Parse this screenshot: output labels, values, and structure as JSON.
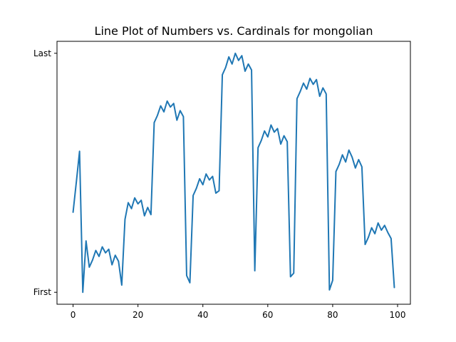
{
  "chart_data": {
    "type": "line",
    "title": "Line Plot of Numbers vs. Cardinals for mongolian",
    "xlabel": "",
    "ylabel": "",
    "xlim": [
      -4.95,
      103.95
    ],
    "ylim": [
      -0.05,
      1.05
    ],
    "xticks": [
      {
        "value": 0,
        "label": "0"
      },
      {
        "value": 20,
        "label": "20"
      },
      {
        "value": 40,
        "label": "40"
      },
      {
        "value": 60,
        "label": "60"
      },
      {
        "value": 80,
        "label": "80"
      },
      {
        "value": 100,
        "label": "100"
      }
    ],
    "yticks": [
      {
        "value": 0,
        "label": "First"
      },
      {
        "value": 1,
        "label": "Last"
      }
    ],
    "grid": false,
    "legend": "none",
    "series": [
      {
        "color": "#1f77b4",
        "x": [
          0,
          1,
          2,
          3,
          4,
          5,
          6,
          7,
          8,
          9,
          10,
          11,
          12,
          13,
          14,
          15,
          16,
          17,
          18,
          19,
          20,
          21,
          22,
          23,
          24,
          25,
          26,
          27,
          28,
          29,
          30,
          31,
          32,
          33,
          34,
          35,
          36,
          37,
          38,
          39,
          40,
          41,
          42,
          43,
          44,
          45,
          46,
          47,
          48,
          49,
          50,
          51,
          52,
          53,
          54,
          55,
          56,
          57,
          58,
          59,
          60,
          61,
          62,
          63,
          64,
          65,
          66,
          67,
          68,
          69,
          70,
          71,
          72,
          73,
          74,
          75,
          76,
          77,
          78,
          79,
          80,
          81,
          82,
          83,
          84,
          85,
          86,
          87,
          88,
          89,
          90,
          91,
          92,
          93,
          94,
          95,
          96,
          97,
          98,
          99
        ],
        "y": [
          0.335,
          0.46,
          0.59,
          0.0,
          0.215,
          0.105,
          0.135,
          0.175,
          0.15,
          0.19,
          0.165,
          0.18,
          0.115,
          0.155,
          0.13,
          0.03,
          0.305,
          0.375,
          0.35,
          0.395,
          0.37,
          0.385,
          0.32,
          0.355,
          0.325,
          0.71,
          0.74,
          0.78,
          0.755,
          0.8,
          0.775,
          0.79,
          0.72,
          0.76,
          0.735,
          0.07,
          0.04,
          0.405,
          0.435,
          0.475,
          0.45,
          0.495,
          0.47,
          0.485,
          0.415,
          0.425,
          0.91,
          0.94,
          0.985,
          0.955,
          1.0,
          0.97,
          0.99,
          0.925,
          0.955,
          0.93,
          0.09,
          0.605,
          0.635,
          0.675,
          0.65,
          0.7,
          0.67,
          0.685,
          0.62,
          0.655,
          0.63,
          0.065,
          0.08,
          0.81,
          0.84,
          0.875,
          0.85,
          0.895,
          0.87,
          0.89,
          0.82,
          0.855,
          0.83,
          0.01,
          0.05,
          0.505,
          0.535,
          0.575,
          0.545,
          0.595,
          0.565,
          0.52,
          0.555,
          0.525,
          0.2,
          0.23,
          0.27,
          0.245,
          0.29,
          0.26,
          0.28,
          0.25,
          0.225,
          0.02
        ]
      }
    ]
  }
}
